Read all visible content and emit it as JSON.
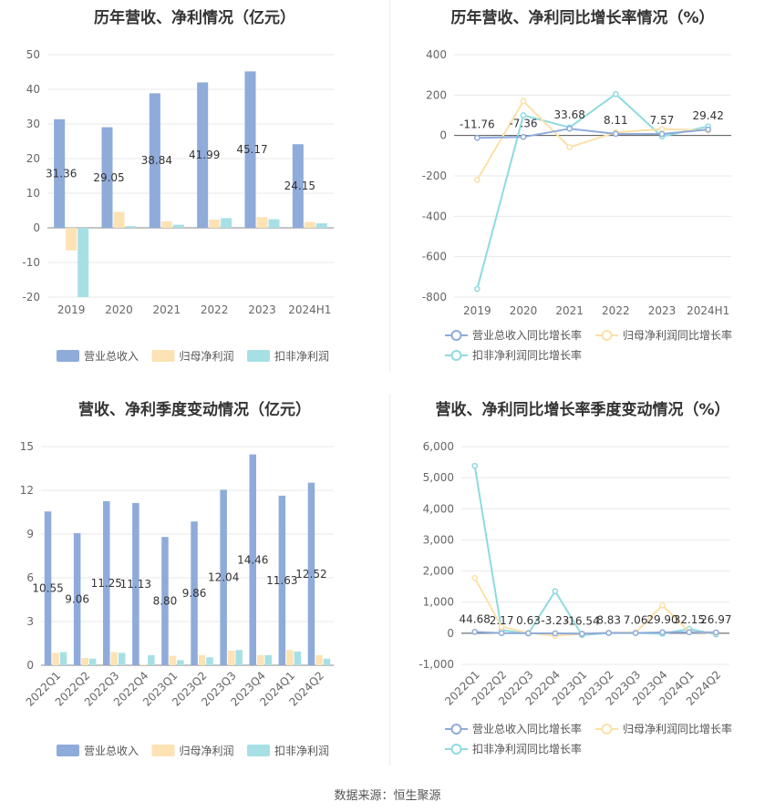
{
  "source": "数据来源：恒生聚源",
  "colors": {
    "revenue": "#8eabda",
    "netprofit": "#fde2b4",
    "deducted": "#a7e0e4",
    "rev_line": "#8eabda",
    "np_line": "#fde0a8",
    "ded_line": "#8edbdf"
  },
  "chart_data": [
    {
      "id": "annual_bar",
      "type": "bar",
      "title": "历年营收、净利情况（亿元）",
      "categories": [
        "2019",
        "2020",
        "2021",
        "2022",
        "2023",
        "2024H1"
      ],
      "ylim": [
        -20,
        50
      ],
      "yticks": [
        -20,
        -10,
        0,
        10,
        20,
        30,
        40,
        50
      ],
      "series": [
        {
          "name": "营业总收入",
          "values": [
            31.36,
            29.05,
            38.84,
            41.99,
            45.17,
            24.15
          ],
          "labels": [
            "31.36",
            "29.05",
            "38.84",
            "41.99",
            "45.17",
            "24.15"
          ]
        },
        {
          "name": "归母净利润",
          "values": [
            -6.5,
            4.6,
            1.9,
            2.4,
            3.1,
            1.7
          ]
        },
        {
          "name": "扣非净利润",
          "values": [
            -20,
            0.5,
            0.9,
            2.8,
            2.5,
            1.3
          ]
        }
      ],
      "legend": "bottom"
    },
    {
      "id": "annual_line",
      "type": "line",
      "title": "历年营收、净利同比增长率情况（%）",
      "categories": [
        "2019",
        "2020",
        "2021",
        "2022",
        "2023",
        "2024H1"
      ],
      "ylim": [
        -800,
        400
      ],
      "yticks": [
        -800,
        -600,
        -400,
        -200,
        0,
        200,
        400
      ],
      "series": [
        {
          "name": "营业总收入同比增长率",
          "values": [
            -11.76,
            -7.36,
            33.68,
            8.11,
            7.57,
            29.42
          ],
          "labels": [
            "-11.76",
            "-7.36",
            "33.68",
            "8.11",
            "7.57",
            "29.42"
          ]
        },
        {
          "name": "归母净利润同比增长率",
          "values": [
            -220,
            170,
            -58,
            15,
            32,
            25
          ]
        },
        {
          "name": "扣非净利润同比增长率",
          "values": [
            -760,
            100,
            40,
            205,
            -5,
            45
          ]
        }
      ],
      "legend": "bottom"
    },
    {
      "id": "quarter_bar",
      "type": "bar",
      "title": "营收、净利季度变动情况（亿元）",
      "categories": [
        "2022Q1",
        "2022Q2",
        "2022Q3",
        "2022Q4",
        "2023Q1",
        "2023Q2",
        "2023Q3",
        "2023Q4",
        "2024Q1",
        "2024Q2"
      ],
      "ylim": [
        0,
        15
      ],
      "yticks": [
        0,
        3,
        6,
        9,
        12,
        15
      ],
      "series": [
        {
          "name": "营业总收入",
          "values": [
            10.55,
            9.06,
            11.25,
            11.13,
            8.8,
            9.86,
            12.04,
            14.46,
            11.63,
            12.52
          ],
          "labels": [
            "10.55",
            "9.06",
            "11.25",
            "11.13",
            "8.80",
            "9.86",
            "12.04",
            "14.46",
            "11.63",
            "12.52"
          ]
        },
        {
          "name": "归母净利润",
          "values": [
            0.85,
            0.5,
            0.9,
            0.05,
            0.65,
            0.7,
            1.0,
            0.7,
            1.05,
            0.7
          ]
        },
        {
          "name": "扣非净利润",
          "values": [
            0.9,
            0.45,
            0.85,
            0.7,
            0.35,
            0.55,
            1.05,
            0.7,
            0.95,
            0.45
          ]
        }
      ],
      "legend": "bottom"
    },
    {
      "id": "quarter_line",
      "type": "line",
      "title": "营收、净利同比增长率季度变动情况（%）",
      "categories": [
        "2022Q1",
        "2022Q2",
        "2022Q3",
        "2022Q4",
        "2023Q1",
        "2023Q2",
        "2023Q3",
        "2023Q4",
        "2024Q1",
        "2024Q2"
      ],
      "ylim": [
        -1000,
        6000
      ],
      "yticks": [
        -1000,
        0,
        1000,
        2000,
        3000,
        4000,
        5000,
        6000
      ],
      "series": [
        {
          "name": "营业总收入同比增长率",
          "values": [
            44.68,
            2.17,
            0.63,
            -3.23,
            -16.54,
            8.83,
            7.06,
            29.9,
            32.15,
            26.97
          ],
          "labels": [
            "44.68",
            "2.17",
            "0.63",
            "-3.23",
            "-16.54",
            "8.83",
            "7.06",
            "29.90",
            "32.15",
            "26.97"
          ]
        },
        {
          "name": "归母净利润同比增长率",
          "values": [
            1780,
            210,
            10,
            -80,
            -20,
            20,
            20,
            900,
            40,
            10
          ]
        },
        {
          "name": "扣非净利润同比增长率",
          "values": [
            5380,
            100,
            -10,
            1350,
            -60,
            10,
            10,
            -20,
            140,
            -40
          ]
        }
      ],
      "legend": "bottom"
    }
  ]
}
